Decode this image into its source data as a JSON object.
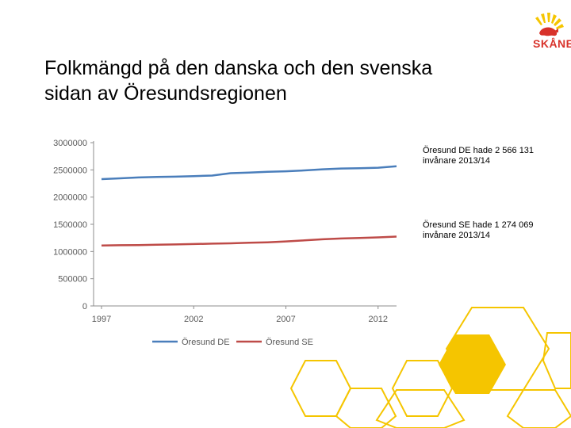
{
  "slide": {
    "title_line1": "Folkmängd på den danska och den svenska",
    "title_line2": "sidan av Öresundsregionen",
    "logo_text": "SKÅNE",
    "note_de": "Öresund DE hade 2 566 131 invånare 2013/14",
    "note_se": "Öresund SE hade 1 274 069 invånare 2013/14"
  },
  "colors": {
    "series_de": "#4a7ebb",
    "series_se": "#be4b48",
    "hex_yellow": "#f5c500",
    "logo_red": "#d8322a"
  },
  "chart_data": {
    "type": "line",
    "x": [
      1997,
      1998,
      1999,
      2000,
      2001,
      2002,
      2003,
      2004,
      2005,
      2006,
      2007,
      2008,
      2009,
      2010,
      2011,
      2012,
      2013
    ],
    "x_tick_labels": [
      "1997",
      "2002",
      "2007",
      "2012"
    ],
    "x_tick_values": [
      1997,
      2002,
      2007,
      2012
    ],
    "y_tick_labels": [
      "0",
      "500000",
      "1000000",
      "1500000",
      "2000000",
      "2500000",
      "3000000"
    ],
    "y_tick_values": [
      0,
      500000,
      1000000,
      1500000,
      2000000,
      2500000,
      3000000
    ],
    "ylim": [
      0,
      3000000
    ],
    "xlim": [
      1997,
      2013
    ],
    "legend_position": "bottom",
    "series": [
      {
        "name": "Öresund DE",
        "values": [
          2330000,
          2345000,
          2360000,
          2370000,
          2375000,
          2385000,
          2395000,
          2440000,
          2450000,
          2465000,
          2475000,
          2490000,
          2510000,
          2525000,
          2530000,
          2540000,
          2566131
        ]
      },
      {
        "name": "Öresund SE",
        "values": [
          1110000,
          1115000,
          1118000,
          1125000,
          1130000,
          1138000,
          1145000,
          1150000,
          1160000,
          1170000,
          1185000,
          1205000,
          1225000,
          1240000,
          1250000,
          1260000,
          1274069
        ]
      }
    ]
  }
}
